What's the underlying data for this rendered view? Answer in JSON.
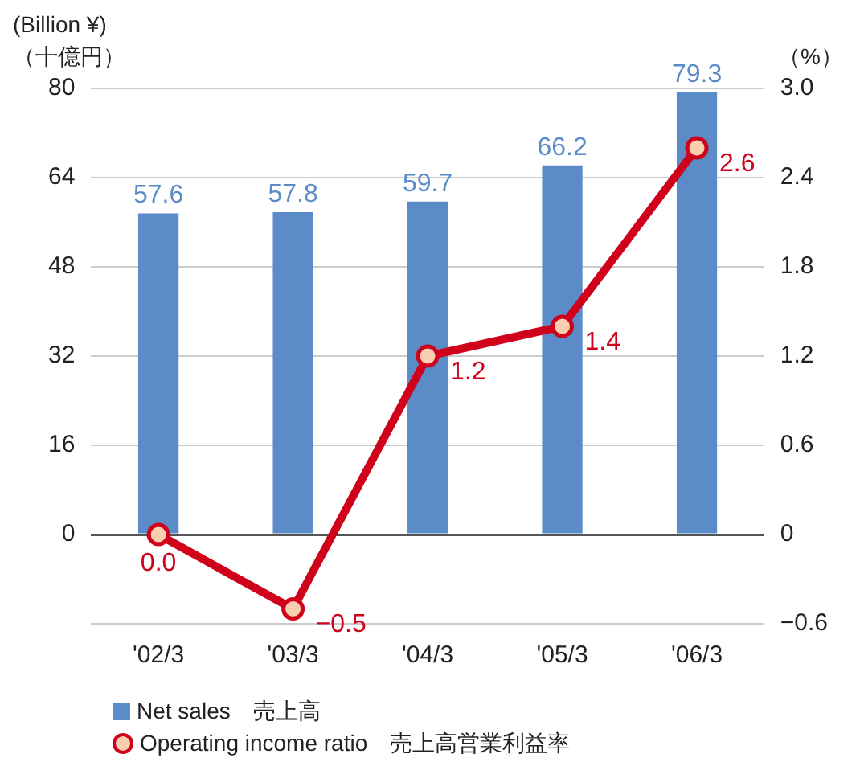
{
  "chart_data": {
    "type": "bar",
    "categories": [
      "'02/3",
      "'03/3",
      "'04/3",
      "'05/3",
      "'06/3"
    ],
    "series": [
      {
        "name": "Net sales　売上高",
        "color": "#5b8cc8",
        "values": [
          57.6,
          57.8,
          59.7,
          66.2,
          79.3
        ]
      },
      {
        "name": "Operating income ratio　売上高営業利益率",
        "type": "line",
        "axis": "y2",
        "color": "#d0021b",
        "marker": "circle",
        "values": [
          0.0,
          -0.5,
          1.2,
          1.4,
          2.6
        ],
        "value_labels": [
          "0.0",
          "−0.5",
          "1.2",
          "1.4",
          "2.6"
        ]
      }
    ],
    "ylabel": "(Billion ¥)\n（十億円）",
    "y2label": "（%）",
    "ylim": [
      -16,
      80
    ],
    "yticks": [
      {
        "value": -16,
        "label": null
      },
      0,
      16,
      32,
      48,
      64,
      80
    ],
    "y2lim": [
      -0.6,
      3.0
    ],
    "y2ticks": [
      {
        "value": -0.6,
        "label": "−0.6"
      },
      0,
      0.6,
      1.2,
      1.8,
      2.4,
      {
        "value": 3,
        "label": "3.0"
      }
    ],
    "grid": "y",
    "legend": "bottom",
    "data_labels": true
  }
}
